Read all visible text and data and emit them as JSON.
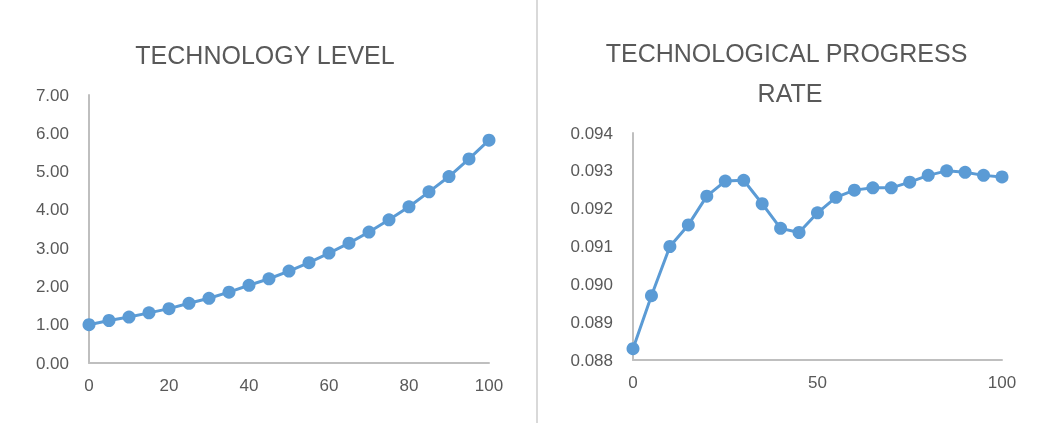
{
  "chart_data": [
    {
      "type": "line",
      "title": "TECHNOLOGY LEVEL",
      "x": [
        0,
        5,
        10,
        15,
        20,
        25,
        30,
        35,
        40,
        45,
        50,
        55,
        60,
        65,
        70,
        75,
        80,
        85,
        90,
        95,
        100
      ],
      "series": [
        {
          "color": "#5b9bd5",
          "values": [
            1.0,
            1.11,
            1.2,
            1.31,
            1.42,
            1.56,
            1.69,
            1.85,
            2.03,
            2.2,
            2.4,
            2.62,
            2.87,
            3.13,
            3.42,
            3.74,
            4.08,
            4.47,
            4.87,
            5.33,
            5.82
          ]
        }
      ],
      "xlim": [
        0,
        100
      ],
      "xticks": [
        0,
        20,
        40,
        60,
        80,
        100
      ],
      "ylim": [
        0,
        7
      ],
      "yticks": [
        {
          "value": 0,
          "label": "0.00"
        },
        {
          "value": 1,
          "label": "1.00"
        },
        {
          "value": 2,
          "label": "2.00"
        },
        {
          "value": 3,
          "label": "3.00"
        },
        {
          "value": 4,
          "label": "4.00"
        },
        {
          "value": 5,
          "label": "5.00"
        },
        {
          "value": 6,
          "label": "6.00"
        },
        {
          "value": 7,
          "label": "7.00"
        }
      ],
      "grid": false,
      "marker": "circle",
      "line_style": "solid"
    },
    {
      "type": "line",
      "title": "TECHNOLOGICAL PROGRESS RATE",
      "x": [
        0,
        5,
        10,
        15,
        20,
        25,
        30,
        35,
        40,
        45,
        50,
        55,
        60,
        65,
        70,
        75,
        80,
        85,
        90,
        95,
        100
      ],
      "series": [
        {
          "color": "#5b9bd5",
          "values": [
            0.0883,
            0.0897,
            0.091,
            0.09157,
            0.09233,
            0.09273,
            0.09275,
            0.09213,
            0.09148,
            0.09137,
            0.09189,
            0.0923,
            0.09249,
            0.09255,
            0.09255,
            0.0927,
            0.09288,
            0.093,
            0.09296,
            0.09288,
            0.09284
          ]
        }
      ],
      "xlim": [
        0,
        100
      ],
      "xticks": [
        0,
        50,
        100
      ],
      "ylim": [
        0.088,
        0.094
      ],
      "yticks": [
        {
          "value": 0.088,
          "label": "0.088"
        },
        {
          "value": 0.089,
          "label": "0.089"
        },
        {
          "value": 0.09,
          "label": "0.090"
        },
        {
          "value": 0.091,
          "label": "0.091"
        },
        {
          "value": 0.092,
          "label": "0.092"
        },
        {
          "value": 0.093,
          "label": "0.093"
        },
        {
          "value": 0.094,
          "label": "0.094"
        }
      ],
      "grid": false,
      "marker": "circle",
      "line_style": "solid"
    }
  ]
}
